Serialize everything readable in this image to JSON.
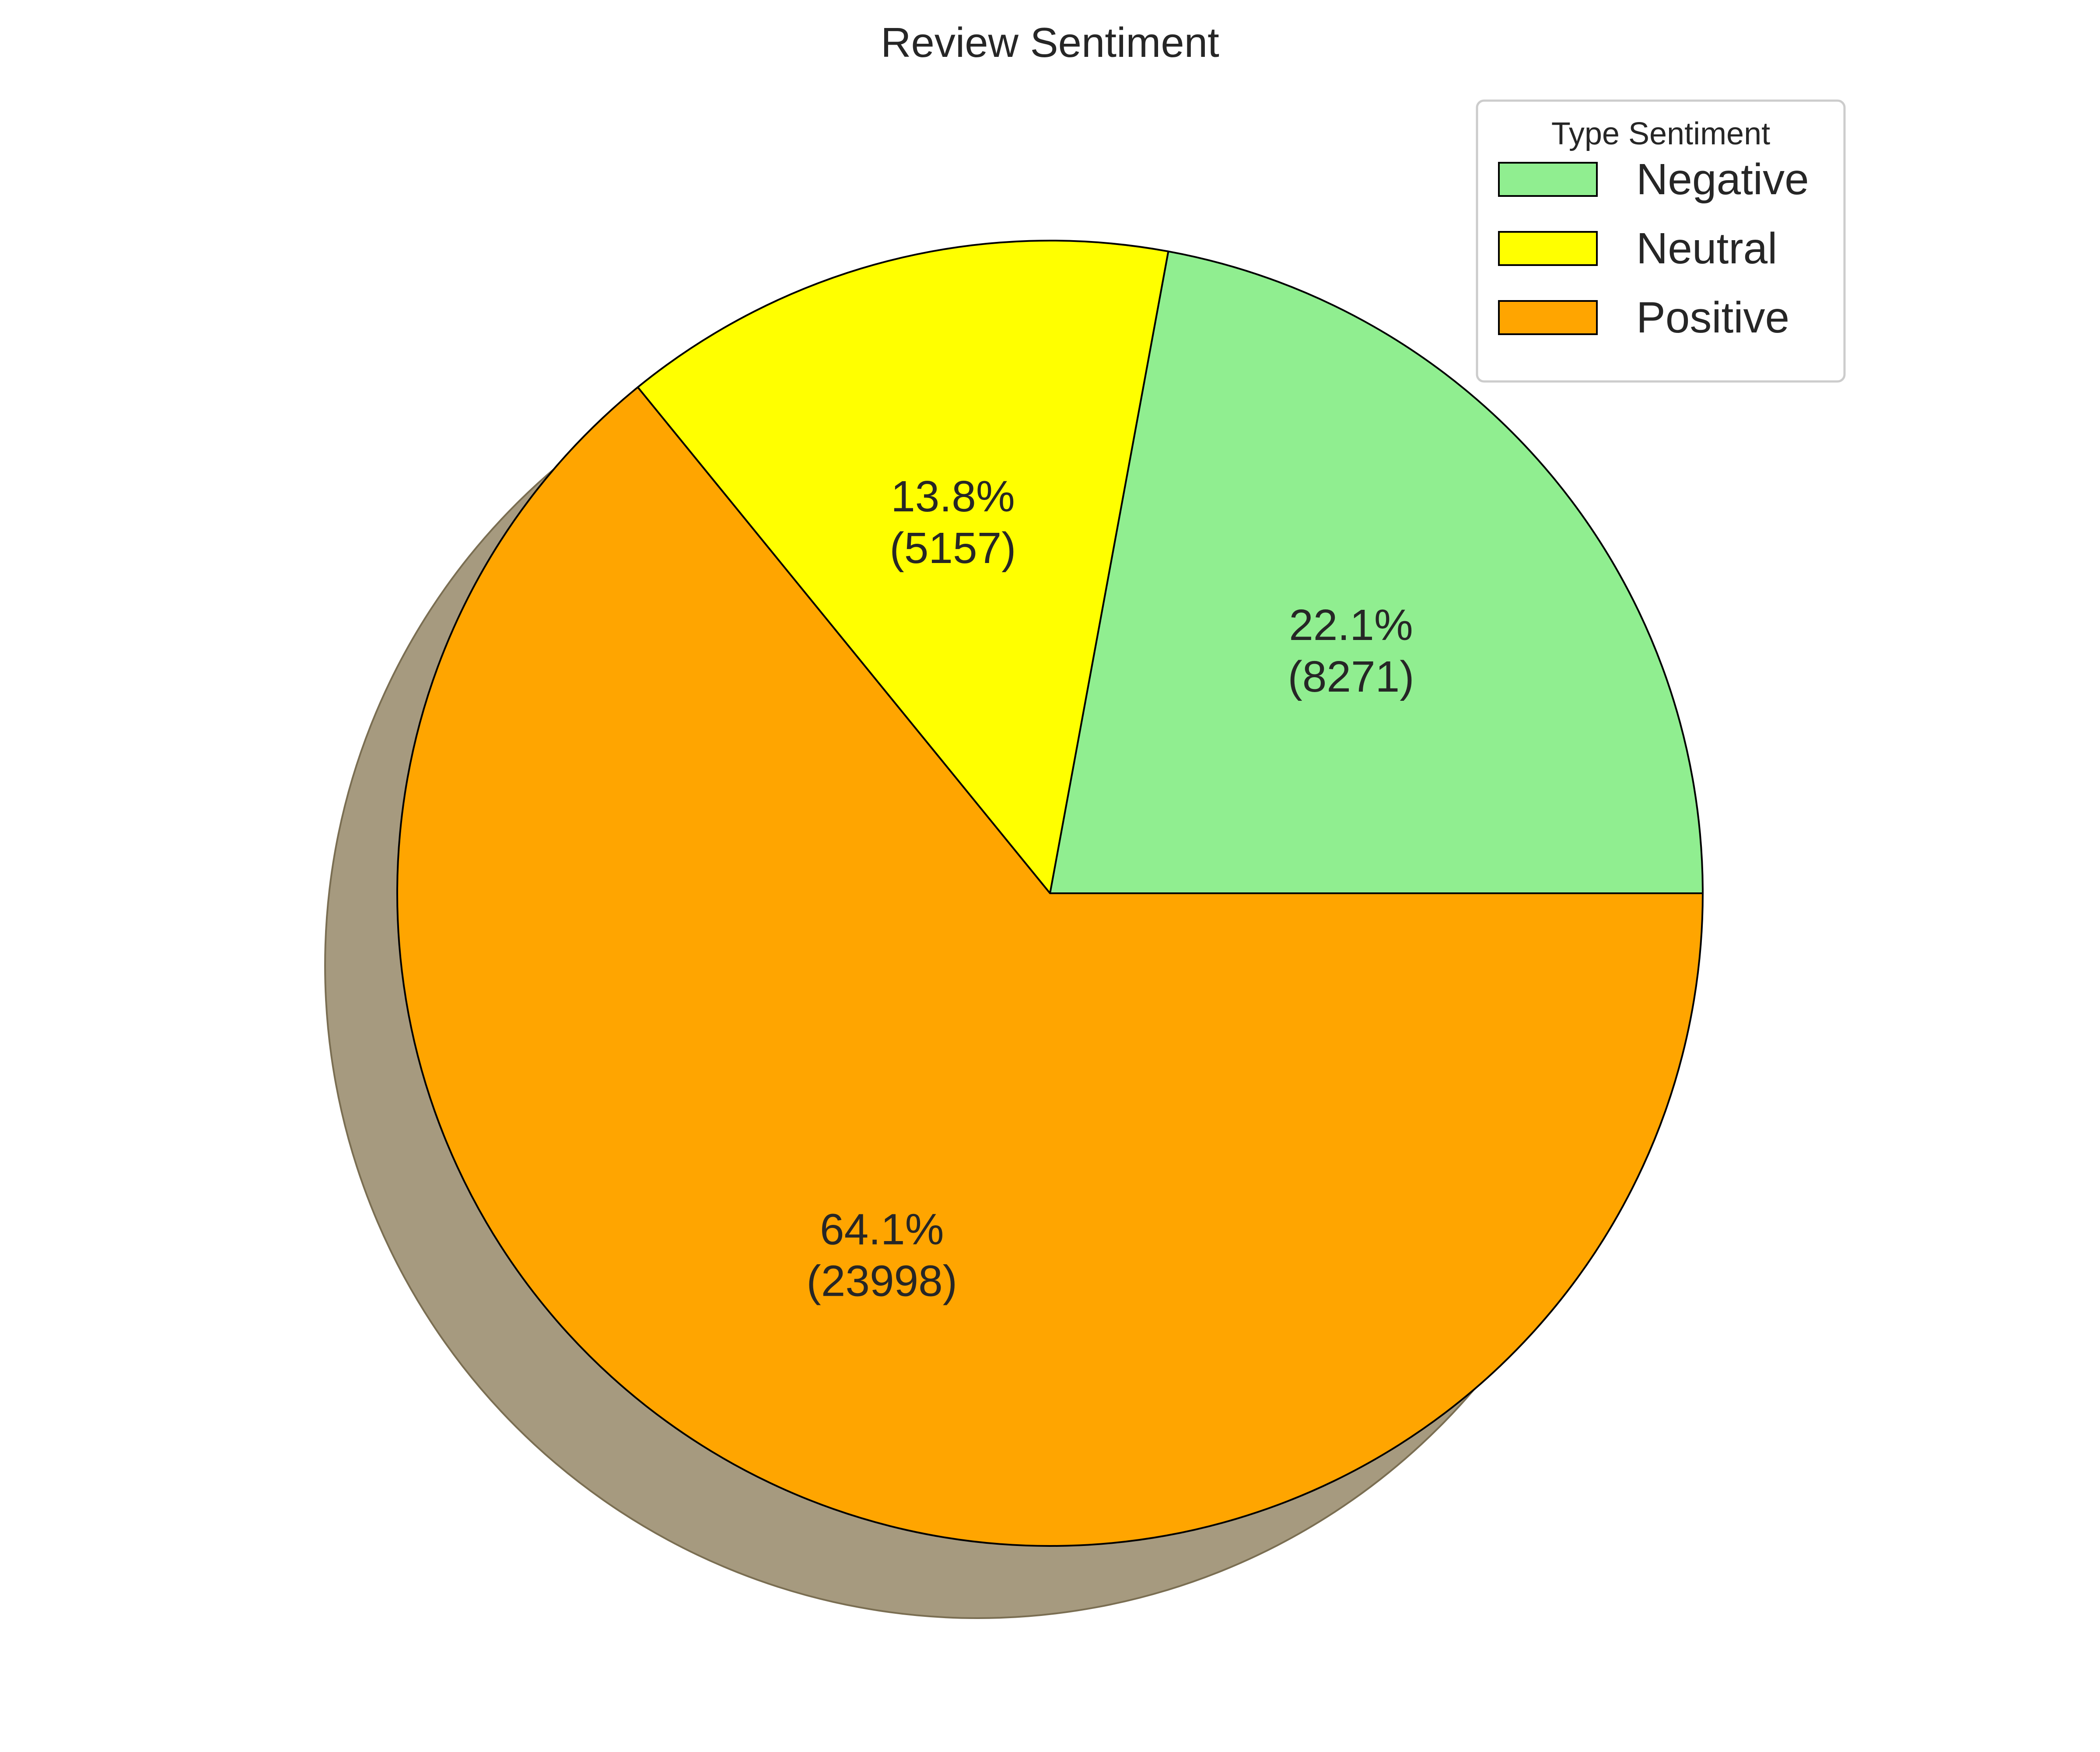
{
  "chart_data": {
    "type": "pie",
    "title": "Review Sentiment",
    "legend": {
      "title": "Type Sentiment",
      "placement": "top-right"
    },
    "slices": [
      {
        "label": "Negative",
        "percent_label": "22.1%",
        "count_label": "(8271)",
        "value": 8271,
        "color": "#90ee90"
      },
      {
        "label": "Neutral",
        "percent_label": "13.8%",
        "count_label": "(5157)",
        "value": 5157,
        "color": "#ffff00"
      },
      {
        "label": "Positive",
        "percent_label": "64.1%",
        "count_label": "(23998)",
        "value": 23998,
        "color": "#ffa500"
      }
    ],
    "start_angle_deg": 0,
    "direction": "counterclockwise",
    "shadow": true,
    "shadow_color": "#a69a7f",
    "edge_color": "#000000"
  }
}
